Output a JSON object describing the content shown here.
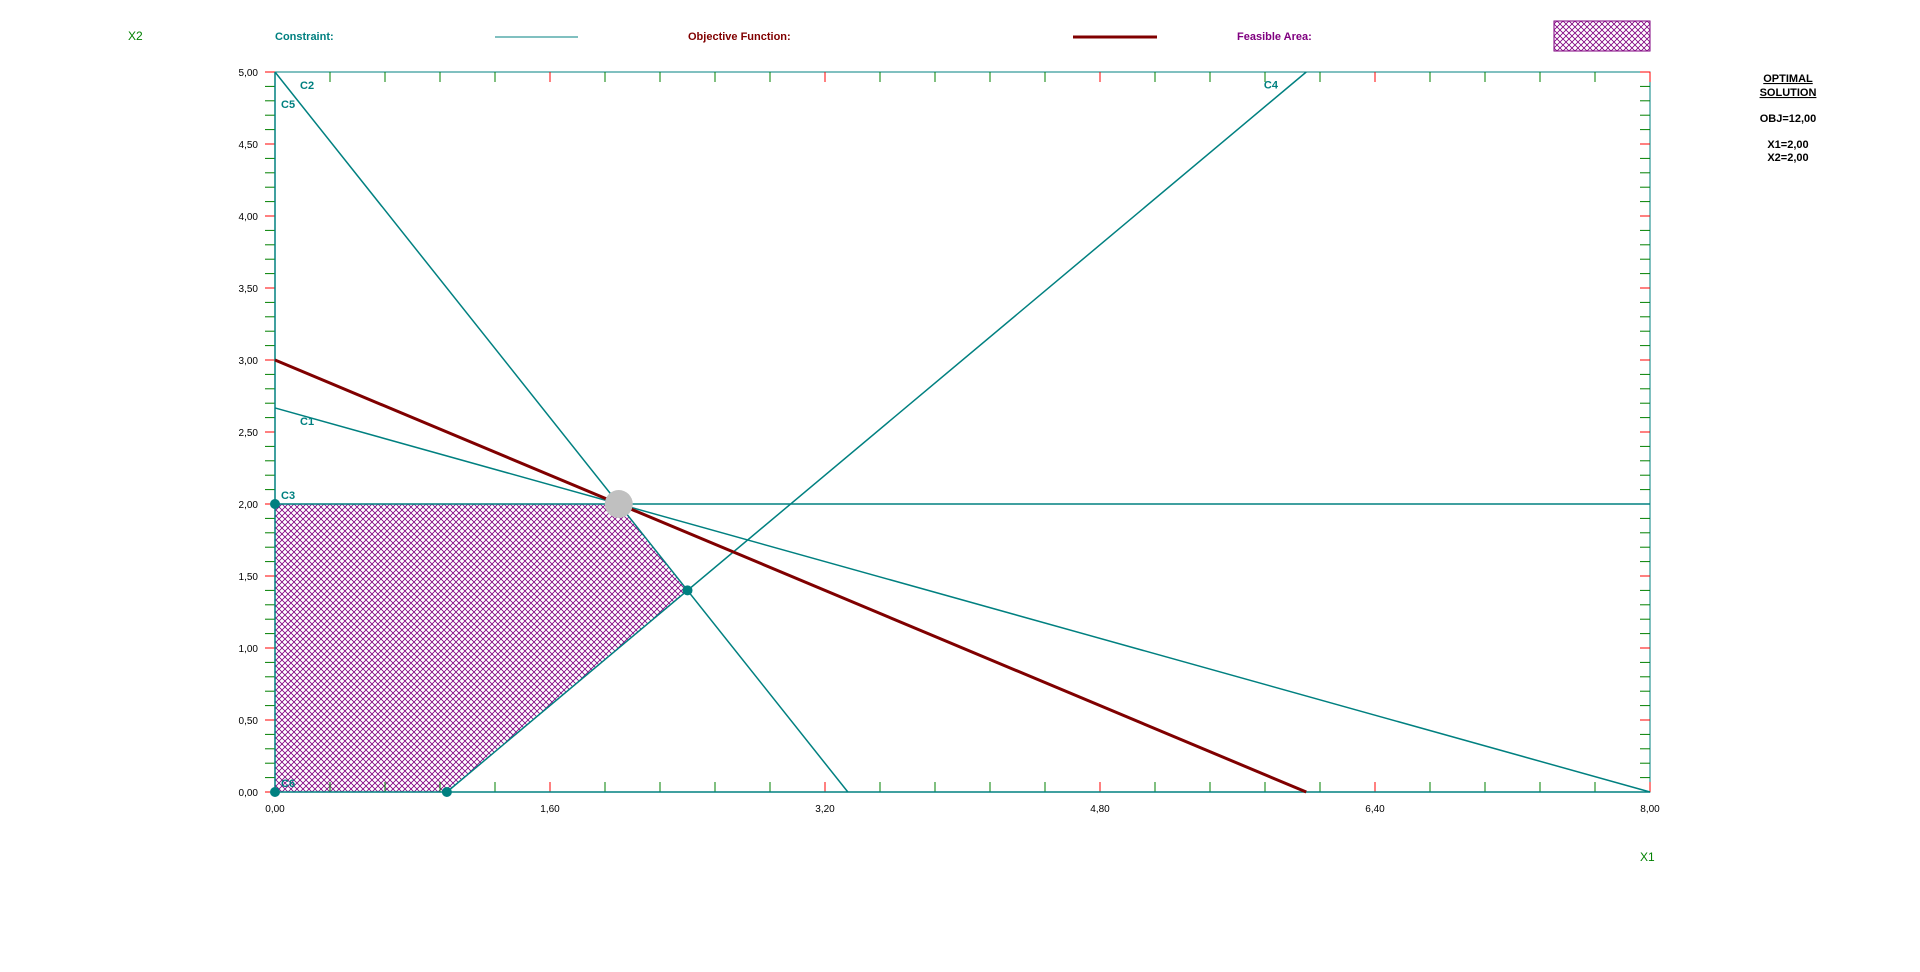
{
  "legend": {
    "constraint_label": "Constraint:",
    "objective_label": "Objective Function:",
    "feasible_label": "Feasible Area:"
  },
  "colors": {
    "constraint": "#008080",
    "objective": "#800000",
    "feasible": "#800080",
    "axis_name": "#008000",
    "tick_major": "#ff0000",
    "tick_minor": "#008000",
    "optimal_point": "#c0c0c0"
  },
  "optimal_solution": {
    "title_line1": "OPTIMAL",
    "title_line2": "SOLUTION",
    "obj": "OBJ=12,00",
    "x1": "X1=2,00",
    "x2": "X2=2,00"
  },
  "chart_data": {
    "type": "line",
    "xlabel": "X1",
    "ylabel": "X2",
    "xlim": [
      0,
      8
    ],
    "ylim": [
      0,
      5
    ],
    "x_tick_labels": [
      "0,00",
      "1,60",
      "3,20",
      "4,80",
      "6,40",
      "8,00"
    ],
    "x_tick_values": [
      0,
      1.6,
      3.2,
      4.8,
      6.4,
      8.0
    ],
    "y_tick_labels": [
      "0,00",
      "0,50",
      "1,00",
      "1,50",
      "2,00",
      "2,50",
      "3,00",
      "3,50",
      "4,00",
      "4,50",
      "5,00"
    ],
    "y_tick_values": [
      0,
      0.5,
      1.0,
      1.5,
      2.0,
      2.5,
      3.0,
      3.5,
      4.0,
      4.5,
      5.0
    ],
    "constraints": [
      {
        "name": "C1",
        "points": [
          [
            0,
            2.667
          ],
          [
            8,
            0
          ]
        ]
      },
      {
        "name": "C2",
        "points": [
          [
            0,
            5
          ],
          [
            3.333,
            0
          ]
        ]
      },
      {
        "name": "C3",
        "points": [
          [
            0,
            2
          ],
          [
            8,
            2
          ]
        ]
      },
      {
        "name": "C4",
        "points": [
          [
            1,
            0
          ],
          [
            6,
            5
          ]
        ]
      },
      {
        "name": "C5",
        "points": [
          [
            0,
            0
          ],
          [
            0,
            5
          ]
        ]
      },
      {
        "name": "C6",
        "points": [
          [
            0,
            0
          ],
          [
            8,
            0
          ]
        ]
      }
    ],
    "objective": {
      "points": [
        [
          0,
          3
        ],
        [
          6,
          0
        ]
      ]
    },
    "feasible_region": [
      [
        0,
        0
      ],
      [
        1,
        0
      ],
      [
        2.4,
        1.4
      ],
      [
        2,
        2
      ],
      [
        0,
        2
      ]
    ],
    "vertices": [
      [
        0,
        0
      ],
      [
        1,
        0
      ],
      [
        2.4,
        1.4
      ],
      [
        0,
        2
      ]
    ],
    "optimal_point": [
      2,
      2
    ]
  }
}
